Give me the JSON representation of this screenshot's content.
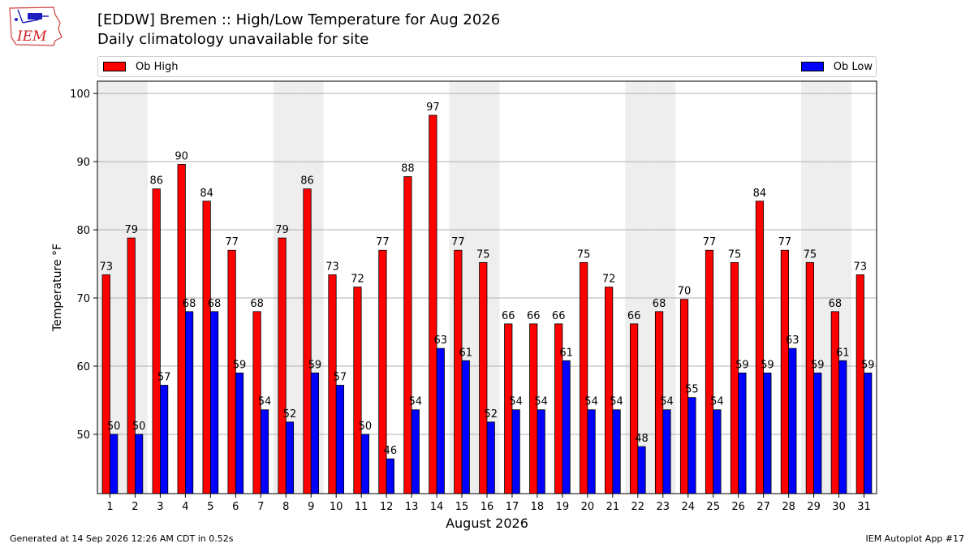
{
  "header": {
    "logo_text": "IEM",
    "title": "[EDDW] Bremen :: High/Low Temperature for Aug 2026",
    "subtitle": "Daily climatology unavailable for site"
  },
  "legend": {
    "placement": "top",
    "high_label": "Ob High",
    "low_label": "Ob Low"
  },
  "colors": {
    "high": "#ff0000",
    "low": "#0000ff",
    "weekend_band": "#eeeeee",
    "grid": "#b0b0b0"
  },
  "footer": {
    "generated": "Generated at 14 Sep 2026 12:26 AM CDT in 0.52s",
    "app": "IEM Autoplot App #17"
  },
  "chart_data": {
    "type": "bar",
    "xlabel": "August 2026",
    "ylabel": "Temperature °F",
    "ylim": [
      41.3,
      101.8
    ],
    "yticks": [
      50,
      60,
      70,
      80,
      90,
      100
    ],
    "grid": true,
    "categories": [
      1,
      2,
      3,
      4,
      5,
      6,
      7,
      8,
      9,
      10,
      11,
      12,
      13,
      14,
      15,
      16,
      17,
      18,
      19,
      20,
      21,
      22,
      23,
      24,
      25,
      26,
      27,
      28,
      29,
      30,
      31
    ],
    "shaded_days": [
      1,
      2,
      8,
      9,
      15,
      16,
      22,
      23,
      29,
      30
    ],
    "series": [
      {
        "name": "Ob High",
        "values": [
          73.4,
          78.8,
          86.0,
          89.6,
          84.2,
          77.0,
          68.0,
          78.8,
          86.0,
          73.4,
          71.6,
          77.0,
          87.8,
          96.8,
          77.0,
          75.2,
          66.2,
          66.2,
          66.2,
          75.2,
          71.6,
          66.2,
          68.0,
          69.8,
          77.0,
          75.2,
          84.2,
          77.0,
          75.2,
          68.0,
          73.4
        ],
        "labels": [
          "73",
          "79",
          "86",
          "90",
          "84",
          "77",
          "68",
          "79",
          "86",
          "73",
          "72",
          "77",
          "88",
          "97",
          "77",
          "75",
          "66",
          "66",
          "66",
          "75",
          "72",
          "66",
          "68",
          "70",
          "77",
          "75",
          "84",
          "77",
          "75",
          "68",
          "73"
        ]
      },
      {
        "name": "Ob Low",
        "values": [
          50.0,
          50.0,
          57.2,
          68.0,
          68.0,
          59.0,
          53.6,
          51.8,
          59.0,
          57.2,
          50.0,
          46.4,
          53.6,
          62.6,
          60.8,
          51.8,
          53.6,
          53.6,
          60.8,
          53.6,
          53.6,
          48.2,
          53.6,
          55.4,
          53.6,
          59.0,
          59.0,
          62.6,
          59.0,
          60.8,
          59.0
        ],
        "labels": [
          "50",
          "50",
          "57",
          "68",
          "68",
          "59",
          "54",
          "52",
          "59",
          "57",
          "50",
          "46",
          "54",
          "63",
          "61",
          "52",
          "54",
          "54",
          "61",
          "54",
          "54",
          "48",
          "54",
          "55",
          "54",
          "59",
          "59",
          "63",
          "59",
          "61",
          "59"
        ]
      }
    ]
  }
}
